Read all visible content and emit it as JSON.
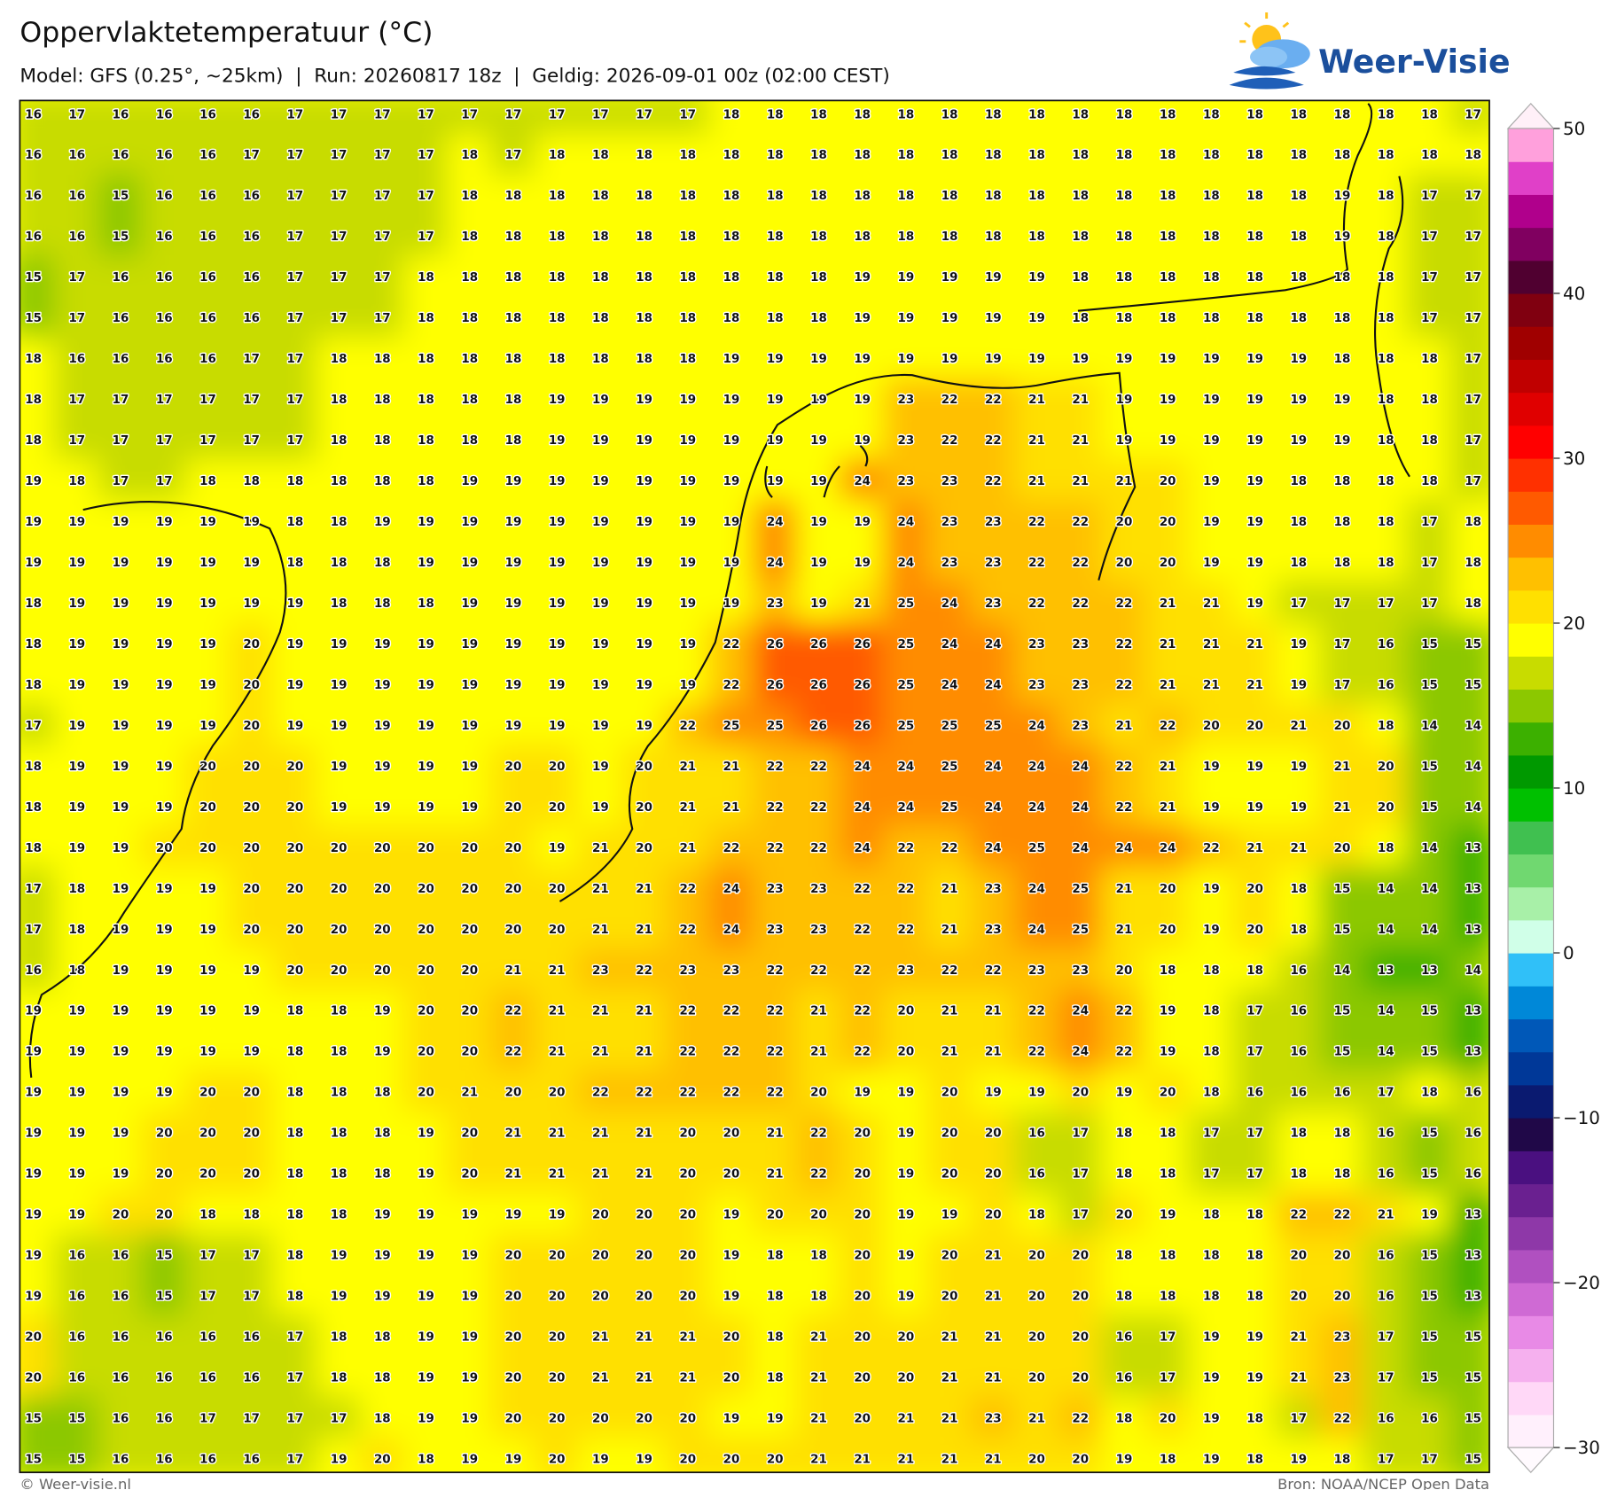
{
  "header": {
    "title": "Oppervlaktetemperatuur (°C)",
    "subtitle": "Model: GFS (0.25°, ~25km)  |  Run: 20260817 18z  |  Geldig: 2026-09-01 00z (02:00 CEST)"
  },
  "logo": "Weer-Visie",
  "footer": {
    "left": "© Weer-visie.nl",
    "right": "Bron: NOAA/NCEP Open Data"
  },
  "colorbar": {
    "lim": [
      -30,
      50
    ],
    "ticks": [
      {
        "value": -30,
        "label": "−30"
      },
      {
        "value": -20,
        "label": "−20"
      },
      {
        "value": -10,
        "label": "−10"
      },
      0,
      10,
      20,
      30,
      40,
      50
    ],
    "colors": [
      "#fff0fc",
      "#ffd8f7",
      "#f5b0ee",
      "#e88ae6",
      "#cf6ad4",
      "#b050c0",
      "#8e38a8",
      "#6a2090",
      "#4a1080",
      "#200848",
      "#0a1a70",
      "#003898",
      "#0058b8",
      "#0088d8",
      "#30c0f8",
      "#d0ffe8",
      "#a8f0a8",
      "#70d870",
      "#40c050",
      "#00c000",
      "#009900",
      "#3cb000",
      "#8cc800",
      "#c8dc00",
      "#ffff00",
      "#ffe000",
      "#ffc000",
      "#ff8c00",
      "#ff5a00",
      "#ff3000",
      "#ff0000",
      "#e00000",
      "#c00000",
      "#a00000",
      "#800010",
      "#500030",
      "#800060",
      "#b0008c",
      "#e040c8",
      "#ffa0dc"
    ]
  },
  "grid": {
    "values": [
      [
        16,
        17,
        16,
        16,
        16,
        16,
        17,
        17,
        17,
        17,
        17,
        17,
        17,
        17,
        17,
        17,
        18,
        18,
        18,
        18,
        18,
        18,
        18,
        18,
        18,
        18,
        18,
        18,
        18,
        18,
        18,
        18,
        18,
        17
      ],
      [
        16,
        16,
        16,
        16,
        16,
        17,
        17,
        17,
        17,
        17,
        18,
        17,
        18,
        18,
        18,
        18,
        18,
        18,
        18,
        18,
        18,
        18,
        18,
        18,
        18,
        18,
        18,
        18,
        18,
        18,
        18,
        18,
        18,
        18
      ],
      [
        16,
        16,
        15,
        16,
        16,
        16,
        17,
        17,
        17,
        17,
        18,
        18,
        18,
        18,
        18,
        18,
        18,
        18,
        18,
        18,
        18,
        18,
        18,
        18,
        18,
        18,
        18,
        18,
        18,
        18,
        19,
        18,
        17,
        17
      ],
      [
        16,
        16,
        15,
        16,
        16,
        16,
        17,
        17,
        17,
        17,
        18,
        18,
        18,
        18,
        18,
        18,
        18,
        18,
        18,
        18,
        18,
        18,
        18,
        18,
        18,
        18,
        18,
        18,
        18,
        18,
        19,
        18,
        17,
        17
      ],
      [
        15,
        17,
        16,
        16,
        16,
        16,
        17,
        17,
        17,
        18,
        18,
        18,
        18,
        18,
        18,
        18,
        18,
        18,
        18,
        19,
        19,
        19,
        19,
        19,
        18,
        18,
        18,
        18,
        18,
        18,
        18,
        18,
        17,
        17
      ],
      [
        15,
        17,
        16,
        16,
        16,
        16,
        17,
        17,
        17,
        18,
        18,
        18,
        18,
        18,
        18,
        18,
        18,
        18,
        18,
        19,
        19,
        19,
        19,
        19,
        18,
        18,
        18,
        18,
        18,
        18,
        18,
        18,
        17,
        17
      ],
      [
        18,
        16,
        16,
        16,
        16,
        17,
        17,
        18,
        18,
        18,
        18,
        18,
        18,
        18,
        18,
        18,
        19,
        19,
        19,
        19,
        19,
        19,
        19,
        19,
        19,
        19,
        19,
        19,
        19,
        19,
        18,
        18,
        18,
        17
      ],
      [
        18,
        17,
        17,
        17,
        17,
        17,
        17,
        18,
        18,
        18,
        18,
        18,
        19,
        19,
        19,
        19,
        19,
        19,
        19,
        19,
        23,
        22,
        22,
        21,
        21,
        19,
        19,
        19,
        19,
        19,
        19,
        18,
        18,
        17
      ],
      [
        18,
        17,
        17,
        17,
        17,
        17,
        17,
        18,
        18,
        18,
        18,
        18,
        19,
        19,
        19,
        19,
        19,
        19,
        19,
        19,
        23,
        22,
        22,
        21,
        21,
        19,
        19,
        19,
        19,
        19,
        19,
        18,
        18,
        17
      ],
      [
        19,
        18,
        17,
        17,
        18,
        18,
        18,
        18,
        18,
        18,
        19,
        19,
        19,
        19,
        19,
        19,
        19,
        19,
        19,
        24,
        23,
        23,
        22,
        21,
        21,
        21,
        20,
        19,
        19,
        18,
        18,
        18,
        18,
        17
      ],
      [
        19,
        19,
        19,
        19,
        19,
        19,
        18,
        18,
        19,
        19,
        19,
        19,
        19,
        19,
        19,
        19,
        19,
        24,
        19,
        19,
        24,
        23,
        23,
        22,
        22,
        20,
        20,
        19,
        19,
        18,
        18,
        18,
        17,
        18
      ],
      [
        19,
        19,
        19,
        19,
        19,
        19,
        18,
        18,
        18,
        19,
        19,
        19,
        19,
        19,
        19,
        19,
        19,
        24,
        19,
        19,
        24,
        23,
        23,
        22,
        22,
        20,
        20,
        19,
        19,
        18,
        18,
        18,
        17,
        18
      ],
      [
        18,
        19,
        19,
        19,
        19,
        19,
        19,
        18,
        18,
        18,
        19,
        19,
        19,
        19,
        19,
        19,
        19,
        23,
        19,
        21,
        25,
        24,
        23,
        22,
        22,
        22,
        21,
        21,
        19,
        17,
        17,
        17,
        17,
        18
      ],
      [
        18,
        19,
        19,
        19,
        19,
        20,
        19,
        19,
        19,
        19,
        19,
        19,
        19,
        19,
        19,
        19,
        22,
        26,
        26,
        26,
        25,
        24,
        24,
        23,
        23,
        22,
        21,
        21,
        21,
        19,
        17,
        16,
        15,
        15
      ],
      [
        18,
        19,
        19,
        19,
        19,
        20,
        19,
        19,
        19,
        19,
        19,
        19,
        19,
        19,
        19,
        19,
        22,
        26,
        26,
        26,
        25,
        24,
        24,
        23,
        23,
        22,
        21,
        21,
        21,
        19,
        17,
        16,
        15,
        15
      ],
      [
        17,
        19,
        19,
        19,
        19,
        20,
        19,
        19,
        19,
        19,
        19,
        19,
        19,
        19,
        19,
        22,
        25,
        25,
        26,
        26,
        25,
        25,
        25,
        24,
        23,
        21,
        22,
        20,
        20,
        21,
        20,
        18,
        14,
        14
      ],
      [
        18,
        19,
        19,
        19,
        20,
        20,
        20,
        19,
        19,
        19,
        19,
        20,
        20,
        19,
        20,
        21,
        21,
        22,
        22,
        24,
        24,
        25,
        24,
        24,
        24,
        22,
        21,
        19,
        19,
        19,
        21,
        20,
        15,
        14
      ],
      [
        18,
        19,
        19,
        19,
        20,
        20,
        20,
        19,
        19,
        19,
        19,
        20,
        20,
        19,
        20,
        21,
        21,
        22,
        22,
        24,
        24,
        25,
        24,
        24,
        24,
        22,
        21,
        19,
        19,
        19,
        21,
        20,
        15,
        14
      ],
      [
        18,
        19,
        19,
        20,
        20,
        20,
        20,
        20,
        20,
        20,
        20,
        20,
        19,
        21,
        20,
        21,
        22,
        22,
        22,
        24,
        22,
        22,
        24,
        25,
        24,
        24,
        24,
        22,
        21,
        21,
        20,
        18,
        14,
        13
      ],
      [
        17,
        18,
        19,
        19,
        19,
        20,
        20,
        20,
        20,
        20,
        20,
        20,
        20,
        21,
        21,
        22,
        24,
        23,
        23,
        22,
        22,
        21,
        23,
        24,
        25,
        21,
        20,
        19,
        20,
        18,
        15,
        14,
        14,
        13
      ],
      [
        17,
        18,
        19,
        19,
        19,
        20,
        20,
        20,
        20,
        20,
        20,
        20,
        20,
        21,
        21,
        22,
        24,
        23,
        23,
        22,
        22,
        21,
        23,
        24,
        25,
        21,
        20,
        19,
        20,
        18,
        15,
        14,
        14,
        13
      ],
      [
        16,
        18,
        19,
        19,
        19,
        19,
        20,
        20,
        20,
        20,
        20,
        21,
        21,
        23,
        22,
        23,
        23,
        22,
        22,
        22,
        23,
        22,
        22,
        23,
        23,
        20,
        18,
        18,
        18,
        16,
        14,
        13,
        13,
        14
      ],
      [
        19,
        19,
        19,
        19,
        19,
        19,
        18,
        18,
        19,
        20,
        20,
        22,
        21,
        21,
        21,
        22,
        22,
        22,
        21,
        22,
        20,
        21,
        21,
        22,
        24,
        22,
        19,
        18,
        17,
        16,
        15,
        14,
        15,
        13
      ],
      [
        19,
        19,
        19,
        19,
        19,
        19,
        18,
        18,
        19,
        20,
        20,
        22,
        21,
        21,
        21,
        22,
        22,
        22,
        21,
        22,
        20,
        21,
        21,
        22,
        24,
        22,
        19,
        18,
        17,
        16,
        15,
        14,
        15,
        13
      ],
      [
        19,
        19,
        19,
        19,
        20,
        20,
        18,
        18,
        18,
        20,
        21,
        20,
        20,
        22,
        22,
        22,
        22,
        22,
        20,
        19,
        19,
        20,
        19,
        19,
        20,
        19,
        20,
        18,
        16,
        16,
        16,
        17,
        18,
        16
      ],
      [
        19,
        19,
        19,
        20,
        20,
        20,
        18,
        18,
        18,
        19,
        20,
        21,
        21,
        21,
        21,
        20,
        20,
        21,
        22,
        20,
        19,
        20,
        20,
        16,
        17,
        18,
        18,
        17,
        17,
        18,
        18,
        16,
        15,
        16
      ],
      [
        19,
        19,
        19,
        20,
        20,
        20,
        18,
        18,
        18,
        19,
        20,
        21,
        21,
        21,
        21,
        20,
        20,
        21,
        22,
        20,
        19,
        20,
        20,
        16,
        17,
        18,
        18,
        17,
        17,
        18,
        18,
        16,
        15,
        16
      ],
      [
        19,
        19,
        20,
        20,
        18,
        18,
        18,
        18,
        19,
        19,
        19,
        19,
        19,
        20,
        20,
        20,
        19,
        20,
        20,
        20,
        19,
        19,
        20,
        18,
        17,
        20,
        19,
        18,
        18,
        22,
        22,
        21,
        19,
        13
      ],
      [
        19,
        16,
        16,
        15,
        17,
        17,
        18,
        19,
        19,
        19,
        19,
        20,
        20,
        20,
        20,
        20,
        19,
        18,
        18,
        20,
        19,
        20,
        21,
        20,
        20,
        18,
        18,
        18,
        18,
        20,
        20,
        16,
        15,
        13
      ],
      [
        19,
        16,
        16,
        15,
        17,
        17,
        18,
        19,
        19,
        19,
        19,
        20,
        20,
        20,
        20,
        20,
        19,
        18,
        18,
        20,
        19,
        20,
        21,
        20,
        20,
        18,
        18,
        18,
        18,
        20,
        20,
        16,
        15,
        13
      ],
      [
        20,
        16,
        16,
        16,
        16,
        16,
        17,
        18,
        18,
        19,
        19,
        20,
        20,
        21,
        21,
        21,
        20,
        18,
        21,
        20,
        20,
        21,
        21,
        20,
        20,
        16,
        17,
        19,
        19,
        21,
        23,
        17,
        15,
        15
      ],
      [
        20,
        16,
        16,
        16,
        16,
        16,
        17,
        18,
        18,
        19,
        19,
        20,
        20,
        21,
        21,
        21,
        20,
        18,
        21,
        20,
        20,
        21,
        21,
        20,
        20,
        16,
        17,
        19,
        19,
        21,
        23,
        17,
        15,
        15
      ],
      [
        15,
        15,
        16,
        16,
        17,
        17,
        17,
        17,
        18,
        19,
        19,
        20,
        20,
        20,
        20,
        20,
        19,
        19,
        21,
        20,
        21,
        21,
        23,
        21,
        22,
        18,
        20,
        19,
        18,
        17,
        22,
        16,
        16,
        15
      ],
      [
        15,
        15,
        16,
        16,
        16,
        16,
        17,
        19,
        20,
        18,
        19,
        19,
        20,
        19,
        19,
        20,
        20,
        20,
        21,
        21,
        21,
        21,
        21,
        20,
        20,
        19,
        18,
        19,
        18,
        19,
        18,
        17,
        17,
        15
      ]
    ]
  }
}
